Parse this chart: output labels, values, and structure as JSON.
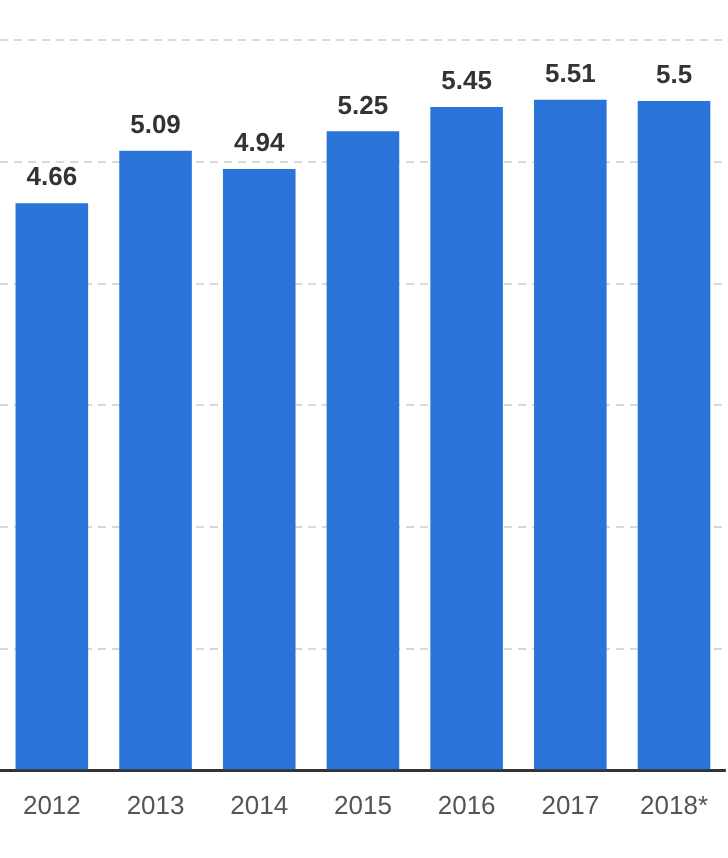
{
  "chart_data": {
    "type": "bar",
    "categories": [
      "2012",
      "2013",
      "2014",
      "2015",
      "2016",
      "2017",
      "2018*"
    ],
    "values": [
      4.66,
      5.09,
      4.94,
      5.25,
      5.45,
      5.51,
      5.5
    ],
    "color": "#2a74d9",
    "ylim": [
      0,
      6
    ],
    "yticks": [
      {
        "value": 0,
        "label": null
      },
      {
        "value": 1,
        "label": null
      },
      {
        "value": 2,
        "label": null
      },
      {
        "value": 3,
        "label": null
      },
      {
        "value": 4,
        "label": null
      },
      {
        "value": 5,
        "label": null
      },
      {
        "value": 6,
        "label": null
      }
    ],
    "grid": "y",
    "data_labels": true,
    "legend": false
  }
}
